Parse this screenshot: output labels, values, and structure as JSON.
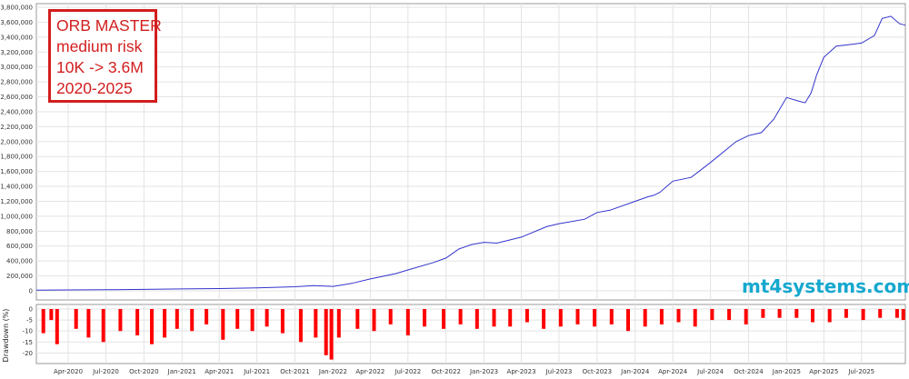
{
  "annotation": {
    "lines": [
      "ORB MASTER",
      "medium risk",
      "10K -> 3.6M",
      "2020-2025"
    ]
  },
  "watermark": "mt4systems.com",
  "chart_data": [
    {
      "type": "line",
      "title": "",
      "xlabel": "",
      "ylabel": "",
      "ylim": [
        0,
        3800000
      ],
      "yticks": [
        0,
        200000,
        400000,
        600000,
        800000,
        1000000,
        1200000,
        1400000,
        1600000,
        1800000,
        2000000,
        2200000,
        2400000,
        2600000,
        2800000,
        3000000,
        3200000,
        3400000,
        3600000,
        3800000
      ],
      "ytick_labels": [
        "0",
        "200,000",
        "400,000",
        "600,000",
        "800,000",
        "1,000,000",
        "1,200,000",
        "1,400,000",
        "1,600,000",
        "1,800,000",
        "2,000,000",
        "2,200,000",
        "2,400,000",
        "2,600,000",
        "2,800,000",
        "3,000,000",
        "3,200,000",
        "3,400,000",
        "3,600,000",
        "3,800,000"
      ],
      "xlim": [
        "2020-01-15",
        "2025-10-15"
      ],
      "xticks": [
        "2020-04-01",
        "2020-07-01",
        "2020-10-01",
        "2021-01-01",
        "2021-04-01",
        "2021-07-01",
        "2021-10-01",
        "2022-01-01",
        "2022-04-01",
        "2022-07-01",
        "2022-10-01",
        "2023-01-01",
        "2023-04-01",
        "2023-07-01",
        "2023-10-01",
        "2024-01-01",
        "2024-04-01",
        "2024-07-01",
        "2024-10-01",
        "2025-01-01",
        "2025-04-01",
        "2025-07-01"
      ],
      "xtick_labels": [
        "Apr-2020",
        "Jul-2020",
        "Oct-2020",
        "Jan-2021",
        "Apr-2021",
        "Jul-2021",
        "Oct-2021",
        "Jan-2022",
        "Apr-2022",
        "Jul-2022",
        "Oct-2022",
        "Jan-2023",
        "Apr-2023",
        "Jul-2023",
        "Oct-2023",
        "Jan-2024",
        "Apr-2024",
        "Jul-2024",
        "Oct-2024",
        "Jan-2025",
        "Apr-2025",
        "Jul-2025"
      ],
      "grid": true,
      "color": "#3333cc",
      "series": [
        {
          "x": [
            "2020-01-15",
            "2020-04-01",
            "2020-07-01",
            "2020-10-01",
            "2021-01-01",
            "2021-04-01",
            "2021-07-01",
            "2021-10-01",
            "2021-11-15",
            "2022-01-01",
            "2022-02-15",
            "2022-04-01",
            "2022-06-01",
            "2022-07-01",
            "2022-09-01",
            "2022-10-01",
            "2022-11-01",
            "2022-12-01",
            "2023-01-01",
            "2023-02-01",
            "2023-04-01",
            "2023-06-01",
            "2023-07-01",
            "2023-09-01",
            "2023-10-01",
            "2023-11-01",
            "2024-01-01",
            "2024-02-01",
            "2024-02-15",
            "2024-03-01",
            "2024-04-01",
            "2024-05-15",
            "2024-07-01",
            "2024-09-01",
            "2024-10-01",
            "2024-11-01",
            "2024-12-01",
            "2025-01-01",
            "2025-02-01",
            "2025-02-15",
            "2025-03-01",
            "2025-03-15",
            "2025-04-01",
            "2025-05-01",
            "2025-06-01",
            "2025-07-01",
            "2025-08-01",
            "2025-08-20",
            "2025-09-10",
            "2025-10-01",
            "2025-10-15"
          ],
          "y": [
            10000,
            12000,
            15000,
            20000,
            25000,
            30000,
            40000,
            55000,
            70000,
            60000,
            100000,
            160000,
            230000,
            280000,
            380000,
            440000,
            560000,
            620000,
            650000,
            640000,
            720000,
            860000,
            900000,
            960000,
            1050000,
            1080000,
            1200000,
            1260000,
            1280000,
            1320000,
            1470000,
            1520000,
            1720000,
            2000000,
            2080000,
            2120000,
            2300000,
            2590000,
            2540000,
            2520000,
            2650000,
            2900000,
            3130000,
            3280000,
            3300000,
            3320000,
            3420000,
            3650000,
            3680000,
            3580000,
            3560000
          ]
        }
      ]
    },
    {
      "type": "bar",
      "title": "",
      "ylabel": "Drawdown (%)",
      "ylim": [
        -24,
        0
      ],
      "yticks": [
        0,
        -5,
        -10,
        -15,
        -20
      ],
      "ytick_labels": [
        "0",
        "-5",
        "-10",
        "-15",
        "-20"
      ],
      "grid": true,
      "color": "#ff0000",
      "series": [
        {
          "x": [
            "2020-02-01",
            "2020-02-20",
            "2020-03-05",
            "2020-04-20",
            "2020-05-20",
            "2020-06-25",
            "2020-08-05",
            "2020-09-15",
            "2020-10-20",
            "2020-11-20",
            "2020-12-20",
            "2021-01-25",
            "2021-03-01",
            "2021-04-10",
            "2021-05-15",
            "2021-06-20",
            "2021-07-25",
            "2021-09-01",
            "2021-10-15",
            "2021-11-20",
            "2021-12-15",
            "2021-12-28",
            "2022-01-15",
            "2022-03-01",
            "2022-04-10",
            "2022-05-20",
            "2022-07-01",
            "2022-08-10",
            "2022-09-25",
            "2022-11-05",
            "2022-12-15",
            "2023-01-25",
            "2023-03-05",
            "2023-04-15",
            "2023-05-25",
            "2023-07-05",
            "2023-08-15",
            "2023-09-25",
            "2023-11-05",
            "2023-12-15",
            "2024-01-25",
            "2024-03-05",
            "2024-04-15",
            "2024-05-25",
            "2024-07-05",
            "2024-08-15",
            "2024-09-25",
            "2024-11-05",
            "2024-12-15",
            "2025-01-25",
            "2025-03-05",
            "2025-04-15",
            "2025-05-25",
            "2025-07-05",
            "2025-08-15",
            "2025-09-25",
            "2025-10-10"
          ],
          "y": [
            -11,
            -5,
            -16,
            -9,
            -13,
            -15,
            -10,
            -12,
            -16,
            -13,
            -9,
            -10,
            -7,
            -14,
            -9,
            -10,
            -8,
            -11,
            -15,
            -13,
            -21,
            -23,
            -13,
            -9,
            -10,
            -7,
            -12,
            -8,
            -9,
            -7,
            -9,
            -8,
            -8,
            -6,
            -9,
            -8,
            -7,
            -8,
            -7,
            -10,
            -8,
            -7,
            -6,
            -8,
            -5,
            -5,
            -7,
            -4,
            -4,
            -4,
            -6,
            -6,
            -4,
            -5,
            -4,
            -4,
            -5
          ]
        }
      ]
    }
  ]
}
